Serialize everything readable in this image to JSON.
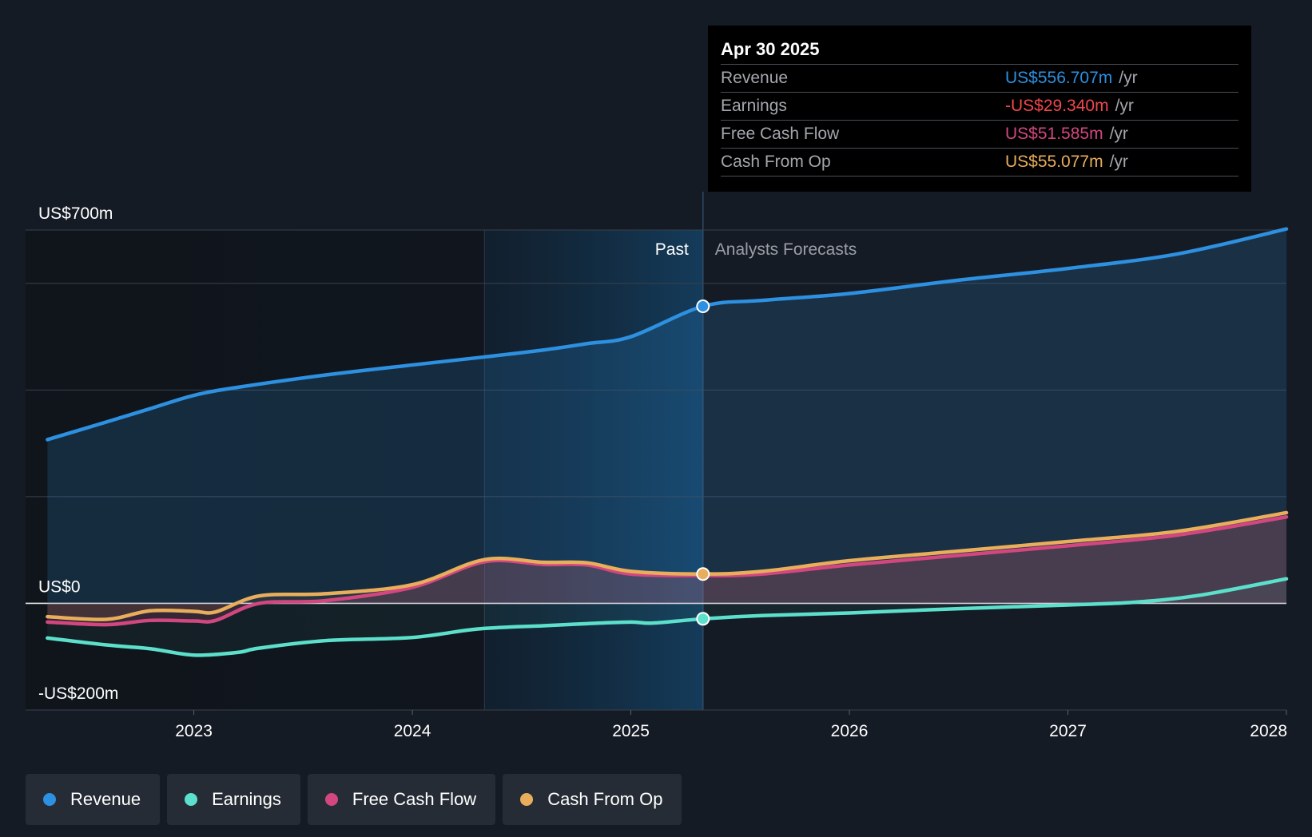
{
  "tooltip": {
    "date": "Apr 30 2025",
    "rows": [
      {
        "label": "Revenue",
        "value": "US$556.707m",
        "unit": "/yr",
        "color": "#2d90e0"
      },
      {
        "label": "Earnings",
        "value": "-US$29.340m",
        "unit": "/yr",
        "color": "#f2464e"
      },
      {
        "label": "Free Cash Flow",
        "value": "US$51.585m",
        "unit": "/yr",
        "color": "#d2477f"
      },
      {
        "label": "Cash From Op",
        "value": "US$55.077m",
        "unit": "/yr",
        "color": "#e8ae5c"
      }
    ]
  },
  "legend": [
    {
      "label": "Revenue",
      "color": "#2d90e0"
    },
    {
      "label": "Earnings",
      "color": "#5ce0cc"
    },
    {
      "label": "Free Cash Flow",
      "color": "#d2477f"
    },
    {
      "label": "Cash From Op",
      "color": "#e8ae5c"
    }
  ],
  "chart_data": {
    "type": "area",
    "y_tick_labels": [
      {
        "value": 700,
        "label": "US$700m"
      },
      {
        "value": 0,
        "label": "US$0"
      },
      {
        "value": -200,
        "label": "-US$200m"
      }
    ],
    "ylim": [
      -200,
      700
    ],
    "xlim": [
      2022.23,
      2028.0
    ],
    "x_tick_labels": [
      {
        "value": 2023,
        "label": "2023"
      },
      {
        "value": 2024,
        "label": "2024"
      },
      {
        "value": 2025,
        "label": "2025"
      },
      {
        "value": 2026,
        "label": "2026"
      },
      {
        "value": 2027,
        "label": "2027"
      },
      {
        "value": 2028,
        "label": "2028"
      }
    ],
    "gridlines": [
      700,
      600,
      400,
      200,
      0,
      -200
    ],
    "past_label": "Past",
    "forecast_label": "Analysts Forecasts",
    "past_end_x": 2025.33,
    "highlight_start_x": 2024.33,
    "series": [
      {
        "name": "Revenue",
        "color": "#2d90e0",
        "points": [
          [
            2022.33,
            307
          ],
          [
            2022.6,
            340
          ],
          [
            2022.8,
            365
          ],
          [
            2023.0,
            390
          ],
          [
            2023.2,
            405
          ],
          [
            2023.6,
            428
          ],
          [
            2024.0,
            447
          ],
          [
            2024.33,
            462
          ],
          [
            2024.6,
            475
          ],
          [
            2024.8,
            487
          ],
          [
            2025.0,
            500
          ],
          [
            2025.33,
            557
          ],
          [
            2025.6,
            568
          ],
          [
            2026.0,
            581
          ],
          [
            2026.5,
            606
          ],
          [
            2027.0,
            628
          ],
          [
            2027.5,
            655
          ],
          [
            2028.0,
            702
          ]
        ]
      },
      {
        "name": "Earnings",
        "color": "#5ce0cc",
        "points": [
          [
            2022.33,
            -65
          ],
          [
            2022.6,
            -78
          ],
          [
            2022.8,
            -85
          ],
          [
            2023.0,
            -97
          ],
          [
            2023.2,
            -92
          ],
          [
            2023.3,
            -84
          ],
          [
            2023.6,
            -70
          ],
          [
            2024.0,
            -64
          ],
          [
            2024.3,
            -48
          ],
          [
            2024.6,
            -42
          ],
          [
            2024.8,
            -38
          ],
          [
            2025.0,
            -35
          ],
          [
            2025.1,
            -37
          ],
          [
            2025.33,
            -29
          ],
          [
            2025.6,
            -23
          ],
          [
            2026.0,
            -18
          ],
          [
            2026.5,
            -10
          ],
          [
            2027.0,
            -3
          ],
          [
            2027.3,
            2
          ],
          [
            2027.6,
            15
          ],
          [
            2028.0,
            46
          ]
        ]
      },
      {
        "name": "Free Cash Flow",
        "color": "#d2477f",
        "points": [
          [
            2022.33,
            -35
          ],
          [
            2022.6,
            -40
          ],
          [
            2022.8,
            -32
          ],
          [
            2023.0,
            -33
          ],
          [
            2023.1,
            -32
          ],
          [
            2023.3,
            0
          ],
          [
            2023.6,
            5
          ],
          [
            2024.0,
            30
          ],
          [
            2024.33,
            78
          ],
          [
            2024.6,
            73
          ],
          [
            2024.8,
            72
          ],
          [
            2025.0,
            55
          ],
          [
            2025.33,
            52
          ],
          [
            2025.6,
            55
          ],
          [
            2026.0,
            72
          ],
          [
            2026.5,
            90
          ],
          [
            2027.0,
            108
          ],
          [
            2027.5,
            128
          ],
          [
            2028.0,
            162
          ]
        ]
      },
      {
        "name": "Cash From Op",
        "color": "#e8ae5c",
        "points": [
          [
            2022.33,
            -25
          ],
          [
            2022.6,
            -30
          ],
          [
            2022.8,
            -14
          ],
          [
            2023.0,
            -15
          ],
          [
            2023.1,
            -16
          ],
          [
            2023.3,
            14
          ],
          [
            2023.6,
            18
          ],
          [
            2024.0,
            35
          ],
          [
            2024.33,
            82
          ],
          [
            2024.6,
            77
          ],
          [
            2024.8,
            76
          ],
          [
            2025.0,
            60
          ],
          [
            2025.33,
            55
          ],
          [
            2025.6,
            60
          ],
          [
            2026.0,
            80
          ],
          [
            2026.5,
            98
          ],
          [
            2027.0,
            116
          ],
          [
            2027.5,
            135
          ],
          [
            2028.0,
            170
          ]
        ]
      }
    ]
  }
}
